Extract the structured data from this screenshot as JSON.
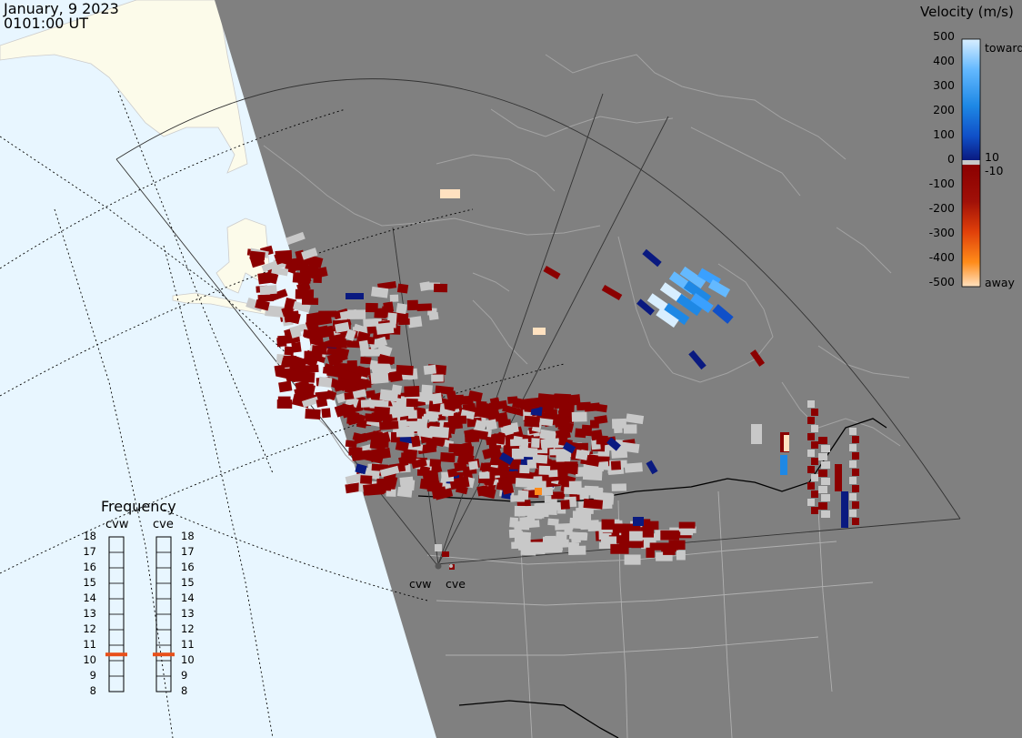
{
  "header": {
    "date": "January, 9 2023",
    "time": "0101:00 UT"
  },
  "legend": {
    "title": "Velocity (m/s)",
    "ticks": [
      "500",
      "400",
      "300",
      "200",
      "100",
      "0",
      "-100",
      "-200",
      "-300",
      "-400",
      "-500"
    ],
    "side_labels": {
      "toward": "toward",
      "ten_pos": "10",
      "ten_neg": "-10",
      "away": "away"
    },
    "colors": {
      "toward_light": "#d8eeff",
      "toward_mid": "#1e88e5",
      "toward_dark": "#0a1a80",
      "zero_gray": "#c8c8c8",
      "away_dark": "#8b0000",
      "away_mid": "#e0400a",
      "away_orange": "#ff8c1a",
      "away_light": "#ffe1c0"
    }
  },
  "frequency": {
    "title": "Frequency",
    "radars": [
      {
        "name": "cvw",
        "selected_mhz": 11
      },
      {
        "name": "cve",
        "selected_mhz": 11
      }
    ],
    "scale": [
      "18",
      "17",
      "16",
      "15",
      "14",
      "13",
      "12",
      "11",
      "10",
      "9",
      "8"
    ],
    "indicator_color": "#e8501a"
  },
  "map": {
    "radar_labels": [
      "cvw",
      "cve"
    ],
    "colors": {
      "ocean": "#e8f6ff",
      "land_day": "#fcfbea",
      "night": "#808080",
      "coastline_night": "#a0a0a0",
      "border": "#000000"
    }
  }
}
